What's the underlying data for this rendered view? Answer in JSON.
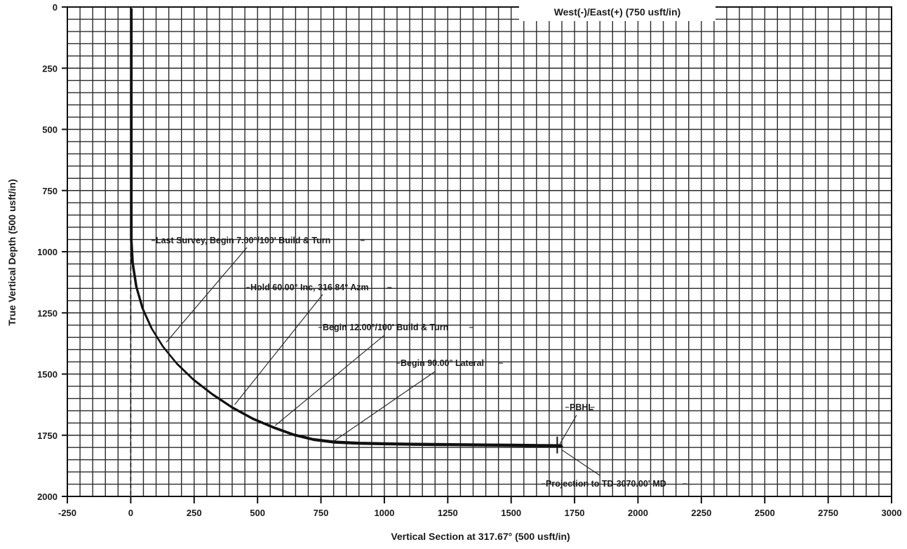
{
  "chart_data": {
    "type": "line",
    "title": "",
    "top_axis_label": "West(-)/East(+) (750 usft/in)",
    "xlabel": "Vertical Section at 317.67° (500 usft/in)",
    "ylabel": "True Vertical Depth (500 usft/in)",
    "xlim": [
      -250,
      3000
    ],
    "ylim": [
      0,
      2000
    ],
    "y_inverted": true,
    "grid": true,
    "x_ticks": [
      -250,
      0,
      250,
      500,
      750,
      1000,
      1250,
      1500,
      1750,
      2000,
      2250,
      2500,
      2750,
      3000
    ],
    "x_tick_labels": [
      "-250",
      "0",
      "250",
      "500",
      "750",
      "1000",
      "1250",
      "1500",
      "1750",
      "2000",
      "2250",
      "2500",
      "2750",
      "3000"
    ],
    "y_ticks": [
      0,
      250,
      500,
      750,
      1000,
      1250,
      1500,
      1750,
      2000
    ],
    "y_tick_labels": [
      "0",
      "250",
      "500",
      "750",
      "1000",
      "1250",
      "1500",
      "1750",
      "2000"
    ],
    "series": [
      {
        "x": [
          0,
          0,
          5,
          20,
          45,
          80,
          125,
          180,
          245,
          320,
          400,
          480,
          560,
          640,
          720,
          800,
          900,
          1000,
          1100,
          1200,
          1300,
          1400,
          1500,
          1600,
          1700
        ],
        "y": [
          0,
          950,
          1040,
          1140,
          1230,
          1310,
          1385,
          1455,
          1520,
          1580,
          1635,
          1680,
          1715,
          1745,
          1765,
          1775,
          1780,
          1782,
          1784,
          1785,
          1786,
          1787,
          1788,
          1789,
          1790
        ]
      }
    ],
    "annotations": [
      {
        "text": "Last Survey, Begin 7.00°/100' Build & Turn",
        "x": 140,
        "y": 1370
      },
      {
        "text": "Hold 60.00° Inc, 316.84° Azm",
        "x": 410,
        "y": 1625
      },
      {
        "text": "Begin 12.00°/100' Build & Turn",
        "x": 570,
        "y": 1710
      },
      {
        "text": "Begin 90.00° Lateral",
        "x": 800,
        "y": 1775
      },
      {
        "text": "PBHL",
        "x": 1690,
        "y": 1790
      },
      {
        "text": "Projection to TD-3070.00' MD",
        "x": 1700,
        "y": 1810
      }
    ]
  }
}
